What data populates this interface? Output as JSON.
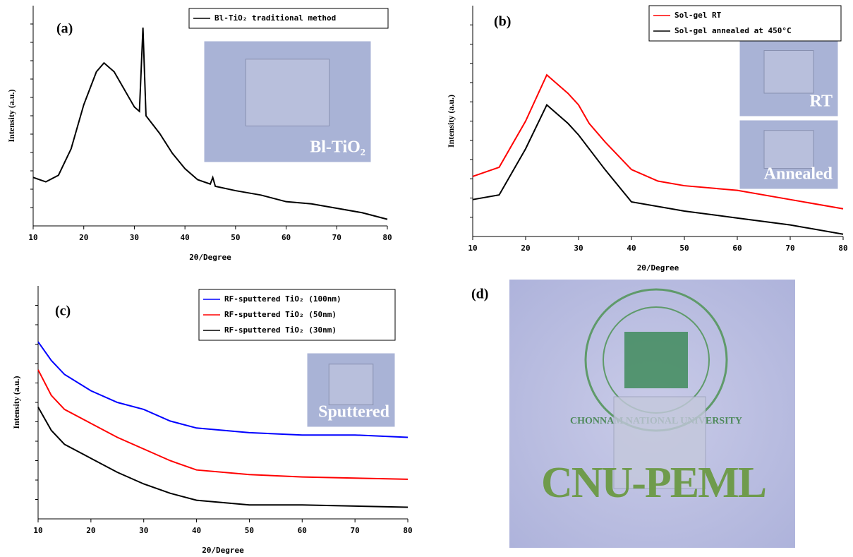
{
  "chart_data": [
    {
      "type": "line",
      "panel_label": "(a)",
      "xlabel": "2θ/Degree",
      "ylabel": "Intensity (a.u.)",
      "xlim": [
        10,
        80
      ],
      "ylim": [
        0,
        100
      ],
      "xticks": [
        10,
        20,
        30,
        40,
        50,
        60,
        70,
        80
      ],
      "legend": "upper right",
      "annotations": [
        "Bl-TiO₂"
      ],
      "series": [
        {
          "name": "Bl-TiO₂ traditional method",
          "color": "#000000",
          "x": [
            10,
            12.5,
            15,
            17.5,
            20,
            22.5,
            24,
            26,
            28,
            30,
            31,
            31.7,
            32.3,
            35,
            37.5,
            40,
            42.5,
            45,
            45.5,
            46,
            50,
            55,
            60,
            65,
            70,
            75,
            80
          ],
          "values": [
            22,
            20,
            23,
            35,
            55,
            70,
            74,
            70,
            62,
            54,
            52,
            90,
            50,
            42,
            33,
            26,
            21,
            19,
            22,
            18,
            16,
            14,
            11,
            10,
            8,
            6,
            3
          ]
        }
      ]
    },
    {
      "type": "line",
      "panel_label": "(b)",
      "xlabel": "2θ/Degree",
      "ylabel": "Intensity (a.u.)",
      "xlim": [
        10,
        80
      ],
      "ylim": [
        0,
        100
      ],
      "xticks": [
        10,
        20,
        30,
        40,
        50,
        60,
        70,
        80
      ],
      "legend": "upper right",
      "annotations": [
        "RT",
        "Annealed"
      ],
      "series": [
        {
          "name": "Sol-gel RT",
          "color": "#ff0000",
          "x": [
            10,
            15,
            20,
            24,
            28,
            30,
            32,
            35,
            40,
            45,
            50,
            60,
            70,
            80
          ],
          "values": [
            26,
            30,
            50,
            70,
            62,
            57,
            49,
            41,
            29,
            24,
            22,
            20,
            16,
            12
          ]
        },
        {
          "name": "Sol-gel annealed at 450°C",
          "color": "#000000",
          "x": [
            10,
            15,
            20,
            24,
            28,
            30,
            35,
            40,
            50,
            60,
            70,
            80
          ],
          "values": [
            16,
            18,
            38,
            57,
            49,
            44,
            29,
            15,
            11,
            8,
            5,
            1
          ]
        }
      ]
    },
    {
      "type": "line",
      "panel_label": "(c)",
      "xlabel": "2θ/Degree",
      "ylabel": "Intensity (a.u.)",
      "xlim": [
        10,
        80
      ],
      "ylim": [
        0,
        100
      ],
      "xticks": [
        10,
        20,
        30,
        40,
        50,
        60,
        70,
        80
      ],
      "legend": "upper right",
      "annotations": [
        "Sputtered"
      ],
      "series": [
        {
          "name": "RF-sputtered TiO₂ (100nm)",
          "color": "#0000ff",
          "x": [
            10,
            12.5,
            15,
            20,
            25,
            30,
            35,
            40,
            50,
            60,
            70,
            80
          ],
          "values": [
            76,
            68,
            62,
            55,
            50,
            47,
            42,
            39,
            37,
            36,
            36,
            35
          ]
        },
        {
          "name": "RF-sputtered TiO₂ (50nm)",
          "color": "#ff0000",
          "x": [
            10,
            12.5,
            15,
            20,
            25,
            30,
            35,
            40,
            50,
            60,
            80
          ],
          "values": [
            64,
            53,
            47,
            41,
            35,
            30,
            25,
            21,
            19,
            18,
            17
          ]
        },
        {
          "name": "RF-sputtered TiO₂ (30nm)",
          "color": "#000000",
          "x": [
            10,
            12.5,
            15,
            20,
            25,
            30,
            35,
            40,
            50,
            60,
            80
          ],
          "values": [
            48,
            38,
            32,
            26,
            20,
            15,
            11,
            8,
            6,
            6,
            5
          ]
        }
      ]
    }
  ],
  "photo": {
    "panel_label": "(d)",
    "seal_text": "CHONNAM NATIONAL UNIVERSITY",
    "logo_text": "CNU-PEML"
  }
}
